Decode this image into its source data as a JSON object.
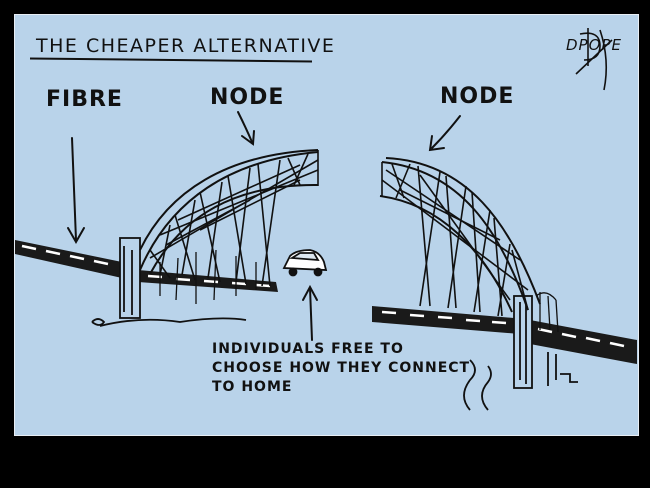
{
  "cartoon": {
    "title": "THE CHEAPER ALTERNATIVE",
    "label_fibre": "FIBRE",
    "label_node_left": "NODE",
    "label_node_right": "NODE",
    "caption": "INDIVIDUALS FREE TO\nCHOOSE HOW THEY CONNECT\nTO HOME",
    "signature": "DPOPE"
  },
  "colors": {
    "background_sky": "#b9d3ea",
    "frame": "#000000",
    "ink": "#111111",
    "road_marking": "#ffffff"
  }
}
